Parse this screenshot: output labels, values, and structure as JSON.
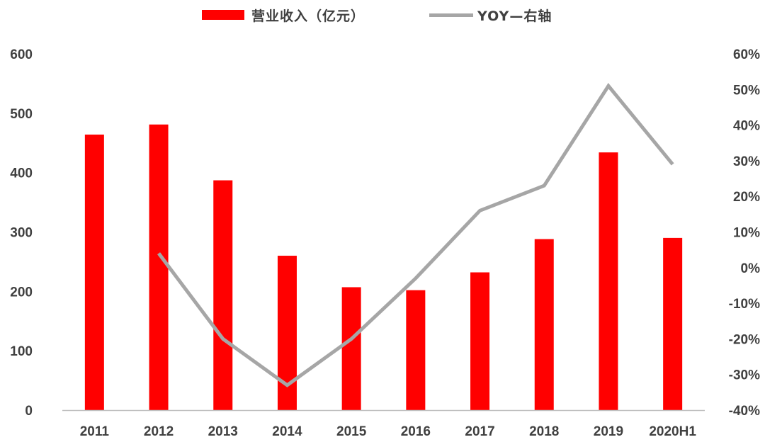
{
  "legend": {
    "bar_label": "营业收入（亿元）",
    "line_label": "YOY—右轴"
  },
  "colors": {
    "bar": "#ff0000",
    "line": "#a6a6a6",
    "axis": "#bfbfbf",
    "text": "#404040"
  },
  "chart_data": {
    "type": "bar",
    "categories": [
      "2011",
      "2012",
      "2013",
      "2014",
      "2015",
      "2016",
      "2017",
      "2018",
      "2019",
      "2020H1"
    ],
    "series": [
      {
        "name": "营业收入（亿元）",
        "type": "bar",
        "axis": "left",
        "values": [
          464,
          481,
          387,
          260,
          207,
          202,
          232,
          288,
          434,
          290
        ]
      },
      {
        "name": "YOY—右轴",
        "type": "line",
        "axis": "right",
        "values": [
          null,
          4,
          -20,
          -33,
          -20,
          -3,
          16,
          23,
          51,
          29
        ]
      }
    ],
    "y_left": {
      "ylim": [
        0,
        600
      ],
      "ticks": [
        "0",
        "100",
        "200",
        "300",
        "400",
        "500",
        "600"
      ]
    },
    "y_right": {
      "ylim": [
        -40,
        60
      ],
      "ticks": [
        "-40%",
        "-30%",
        "-20%",
        "-10%",
        "0%",
        "10%",
        "20%",
        "30%",
        "40%",
        "50%",
        "60%"
      ]
    },
    "legend_position": "top-center",
    "grid": false
  }
}
